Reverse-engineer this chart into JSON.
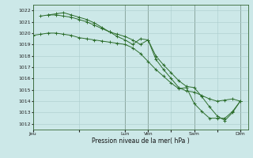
{
  "background_color": "#cce8e8",
  "grid_color": "#aacccc",
  "line_color": "#2d6e2d",
  "marker_color": "#2d6e2d",
  "xlabel_text": "Pression niveau de la mer( hPa )",
  "ylim": [
    1011.5,
    1022.5
  ],
  "yticks": [
    1012,
    1013,
    1014,
    1015,
    1016,
    1017,
    1018,
    1019,
    1020,
    1021,
    1022
  ],
  "xtick_labels": [
    "Jeu",
    "",
    "Lun",
    "Ven",
    "",
    "Sam",
    "",
    "Dim"
  ],
  "xtick_positions": [
    0,
    6,
    12,
    15,
    18,
    21,
    24,
    27
  ],
  "xmax": 28,
  "series": [
    [
      0,
      1019.8,
      1,
      1019.9,
      2,
      1020.0,
      3,
      1020.0,
      4,
      1019.9,
      5,
      1019.8,
      6,
      1019.6,
      7,
      1019.5,
      8,
      1019.4,
      9,
      1019.3,
      10,
      1019.2,
      11,
      1019.1,
      12,
      1019.0,
      13,
      1018.7,
      14,
      1018.2,
      15,
      1017.5,
      16,
      1016.8,
      17,
      1016.2,
      18,
      1015.6,
      19,
      1015.1,
      20,
      1015.2,
      21,
      1013.8,
      22,
      1013.1,
      23,
      1012.5,
      24,
      1012.5,
      25,
      1012.5,
      26,
      1013.1,
      27,
      1014.0
    ],
    [
      1,
      1021.5,
      2,
      1021.6,
      3,
      1021.6,
      4,
      1021.5,
      5,
      1021.4,
      6,
      1021.2,
      7,
      1021.0,
      8,
      1020.7,
      9,
      1020.4,
      10,
      1020.1,
      11,
      1019.9,
      12,
      1019.7,
      13,
      1019.4,
      14,
      1019.0,
      15,
      1019.4,
      16,
      1018.0,
      17,
      1017.2,
      18,
      1016.5,
      19,
      1015.8,
      20,
      1015.3,
      21,
      1015.2,
      22,
      1014.4,
      23,
      1013.5,
      24,
      1012.7,
      25,
      1012.3,
      26,
      1013.0,
      27,
      1014.0
    ],
    [
      2,
      1021.6,
      3,
      1021.7,
      4,
      1021.8,
      5,
      1021.6,
      6,
      1021.4,
      7,
      1021.2,
      8,
      1020.9,
      9,
      1020.5,
      10,
      1020.1,
      11,
      1019.7,
      12,
      1019.4,
      13,
      1019.0,
      14,
      1019.5,
      15,
      1019.4,
      16,
      1017.7,
      17,
      1016.8,
      18,
      1016.0,
      19,
      1015.2,
      20,
      1014.9,
      21,
      1014.8,
      22,
      1014.5,
      23,
      1014.2,
      24,
      1014.0,
      25,
      1014.1,
      26,
      1014.2,
      27,
      1014.0
    ]
  ]
}
